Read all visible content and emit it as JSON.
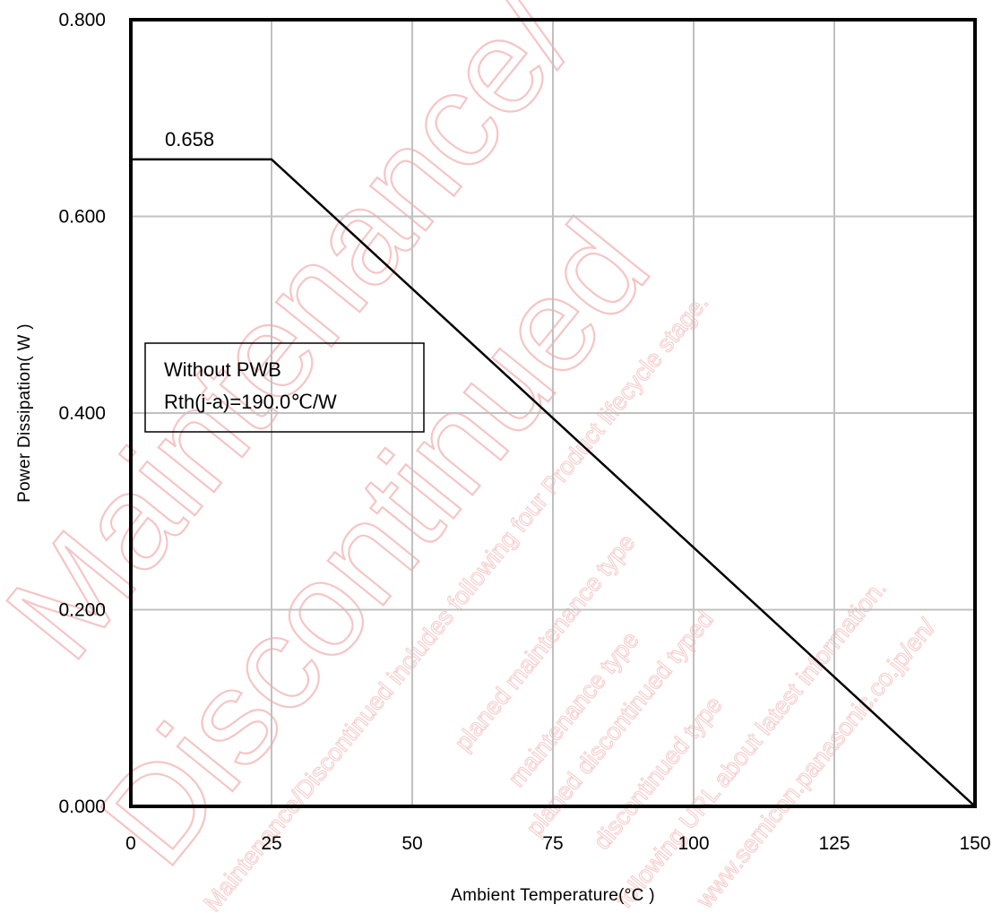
{
  "chart_data": {
    "type": "line",
    "xlabel": "Ambient Temperature(°C )",
    "ylabel": "Power Dissipation(  W )",
    "xlim": [
      0,
      150
    ],
    "ylim": [
      0,
      0.8
    ],
    "x_ticks": [
      "0",
      "25",
      "50",
      "75",
      "100",
      "125",
      "150"
    ],
    "y_ticks": [
      "0.000",
      "0.200",
      "0.400",
      "0.600",
      "0.800"
    ],
    "grid": true,
    "series": [
      {
        "x": [
          0,
          25,
          150
        ],
        "y": [
          0.658,
          0.658,
          0
        ]
      }
    ],
    "annotations": {
      "peak_label": "0.658",
      "legend_box": [
        "Without PWB",
        "Rth(j-a)=190.0℃/W"
      ]
    },
    "watermark": {
      "large": [
        "Maintenance/",
        "Discontinued"
      ],
      "small": [
        "Maintenance/Discontinued includes following four Product lifecycle stage.",
        "planed maintenance type",
        "maintenance type",
        "planed discontinued typed",
        "discontinued type",
        "following URL about latest information.",
        "www.semicon.panasonic.co.jp/en/"
      ]
    },
    "colors": {
      "line": "#000000",
      "grid": "#c0c0c0",
      "watermark": "#f2b2b2"
    }
  }
}
